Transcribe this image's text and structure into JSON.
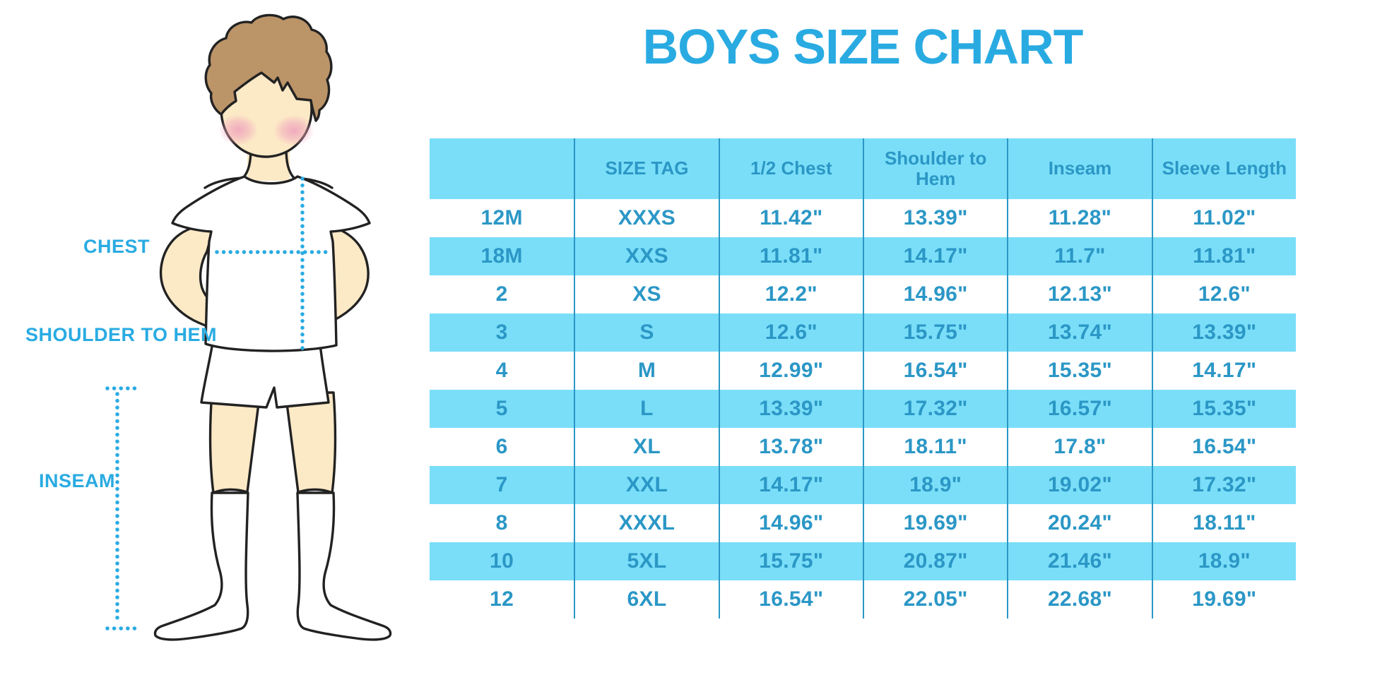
{
  "chart_data": {
    "type": "table",
    "title": "BOYS SIZE CHART",
    "units": "inches",
    "columns": [
      "",
      "SIZE TAG",
      "1/2 Chest",
      "Shoulder to Hem",
      "Inseam",
      "Sleeve Length"
    ],
    "rows": [
      [
        "12M",
        "XXXS",
        "11.42\"",
        "13.39\"",
        "11.28\"",
        "11.02\""
      ],
      [
        "18M",
        "XXS",
        "11.81\"",
        "14.17\"",
        "11.7\"",
        "11.81\""
      ],
      [
        "2",
        "XS",
        "12.2\"",
        "14.96\"",
        "12.13\"",
        "12.6\""
      ],
      [
        "3",
        "S",
        "12.6\"",
        "15.75\"",
        "13.74\"",
        "13.39\""
      ],
      [
        "4",
        "M",
        "12.99\"",
        "16.54\"",
        "15.35\"",
        "14.17\""
      ],
      [
        "5",
        "L",
        "13.39\"",
        "17.32\"",
        "16.57\"",
        "15.35\""
      ],
      [
        "6",
        "XL",
        "13.78\"",
        "18.11\"",
        "17.8\"",
        "16.54\""
      ],
      [
        "7",
        "XXL",
        "14.17\"",
        "18.9\"",
        "19.02\"",
        "17.32\""
      ],
      [
        "8",
        "XXXL",
        "14.96\"",
        "19.69\"",
        "20.24\"",
        "18.11\""
      ],
      [
        "10",
        "5XL",
        "15.75\"",
        "20.87\"",
        "21.46\"",
        "18.9\""
      ],
      [
        "12",
        "6XL",
        "16.54\"",
        "22.05\"",
        "22.68\"",
        "19.69\""
      ]
    ],
    "layout": {
      "striped_rows": true,
      "header_filled": true,
      "grid": "vertical-dividers-only",
      "legend": "none"
    }
  },
  "diagram": {
    "labels": {
      "chest": "CHEST",
      "shoulder_to_hem": "SHOULDER TO HEM",
      "inseam": "INSEAM"
    }
  },
  "colors": {
    "accent_blue": "#29abe2",
    "table_text_blue": "#2b97c6",
    "divider_blue": "#2b97c6",
    "stripe_blue": "#7adef8",
    "skin": "#fce9c6",
    "hair_brown": "#bb9468",
    "blush_pink": "#f0a4bd",
    "outline": "#222222"
  }
}
